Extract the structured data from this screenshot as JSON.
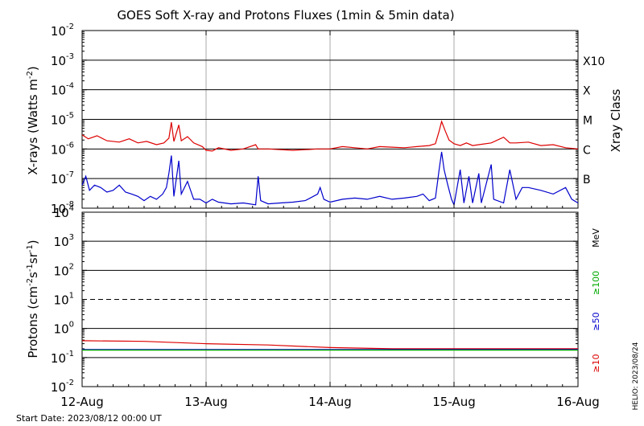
{
  "chart_data": [
    {
      "type": "line",
      "panel": "xray",
      "title": "GOES Soft X-ray and Protons Fluxes   (1min & 5min data)",
      "ylabel": "X-rays (Watts m",
      "ylabel_sup": "-2",
      "ylabel_end": ")",
      "yscale": "log",
      "ylim": [
        1e-08,
        0.01
      ],
      "y_ticks": [
        {
          "value": 1e-08,
          "base": "10",
          "exp": "-8"
        },
        {
          "value": 1e-07,
          "base": "10",
          "exp": "-7"
        },
        {
          "value": 1e-06,
          "base": "10",
          "exp": "-6"
        },
        {
          "value": 1e-05,
          "base": "10",
          "exp": "-5"
        },
        {
          "value": 0.0001,
          "base": "10",
          "exp": "-4"
        },
        {
          "value": 0.001,
          "base": "10",
          "exp": "-3"
        },
        {
          "value": 0.01,
          "base": "10",
          "exp": "-2"
        }
      ],
      "right_axis_title": "Xray Class",
      "class_labels": [
        {
          "label": "B",
          "value": 1e-07
        },
        {
          "label": "C",
          "value": 1e-06
        },
        {
          "label": "M",
          "value": 1e-05
        },
        {
          "label": "X",
          "value": 0.0001
        },
        {
          "label": "X10",
          "value": 0.001
        }
      ],
      "hlines": [
        1e-07,
        1e-06,
        1e-05,
        0.0001,
        0.001
      ],
      "series": [
        {
          "color": "#dd0000",
          "points": [
            [
              0,
              3e-06
            ],
            [
              0.05,
              2.2e-06
            ],
            [
              0.12,
              2.8e-06
            ],
            [
              0.2,
              1.9e-06
            ],
            [
              0.3,
              1.7e-06
            ],
            [
              0.38,
              2.2e-06
            ],
            [
              0.45,
              1.6e-06
            ],
            [
              0.52,
              1.8e-06
            ],
            [
              0.6,
              1.4e-06
            ],
            [
              0.66,
              1.6e-06
            ],
            [
              0.7,
              2.3e-06
            ],
            [
              0.72,
              8e-06
            ],
            [
              0.74,
              1.8e-06
            ],
            [
              0.78,
              6.5e-06
            ],
            [
              0.8,
              1.9e-06
            ],
            [
              0.85,
              2.6e-06
            ],
            [
              0.9,
              1.6e-06
            ],
            [
              0.97,
              1.2e-06
            ],
            [
              1.0,
              9e-07
            ],
            [
              1.05,
              8.5e-07
            ],
            [
              1.1,
              1.1e-06
            ],
            [
              1.2,
              9e-07
            ],
            [
              1.3,
              1e-06
            ],
            [
              1.4,
              1.4e-06
            ],
            [
              1.42,
              1e-06
            ],
            [
              1.5,
              1e-06
            ],
            [
              1.6,
              9.5e-07
            ],
            [
              1.7,
              9e-07
            ],
            [
              1.8,
              9.5e-07
            ],
            [
              1.9,
              1e-06
            ],
            [
              2.0,
              1e-06
            ],
            [
              2.1,
              1.2e-06
            ],
            [
              2.2,
              1.1e-06
            ],
            [
              2.3,
              1e-06
            ],
            [
              2.4,
              1.2e-06
            ],
            [
              2.5,
              1.15e-06
            ],
            [
              2.6,
              1.1e-06
            ],
            [
              2.7,
              1.2e-06
            ],
            [
              2.8,
              1.3e-06
            ],
            [
              2.85,
              1.5e-06
            ],
            [
              2.88,
              4e-06
            ],
            [
              2.9,
              8.5e-06
            ],
            [
              2.93,
              4e-06
            ],
            [
              2.96,
              2e-06
            ],
            [
              3.0,
              1.5e-06
            ],
            [
              3.05,
              1.3e-06
            ],
            [
              3.1,
              1.6e-06
            ],
            [
              3.15,
              1.3e-06
            ],
            [
              3.2,
              1.4e-06
            ],
            [
              3.3,
              1.6e-06
            ],
            [
              3.4,
              2.5e-06
            ],
            [
              3.45,
              1.6e-06
            ],
            [
              3.5,
              1.6e-06
            ],
            [
              3.6,
              1.7e-06
            ],
            [
              3.7,
              1.3e-06
            ],
            [
              3.8,
              1.4e-06
            ],
            [
              3.9,
              1.1e-06
            ],
            [
              4.0,
              1e-06
            ]
          ]
        },
        {
          "color": "#0000cc",
          "points": [
            [
              0,
              6e-08
            ],
            [
              0.03,
              1.2e-07
            ],
            [
              0.06,
              4e-08
            ],
            [
              0.1,
              6e-08
            ],
            [
              0.15,
              5e-08
            ],
            [
              0.2,
              3.5e-08
            ],
            [
              0.25,
              4e-08
            ],
            [
              0.3,
              6e-08
            ],
            [
              0.35,
              3.5e-08
            ],
            [
              0.4,
              3e-08
            ],
            [
              0.45,
              2.5e-08
            ],
            [
              0.5,
              1.8e-08
            ],
            [
              0.55,
              2.5e-08
            ],
            [
              0.6,
              2e-08
            ],
            [
              0.65,
              3e-08
            ],
            [
              0.68,
              5e-08
            ],
            [
              0.7,
              1.5e-07
            ],
            [
              0.72,
              6e-07
            ],
            [
              0.74,
              2.5e-08
            ],
            [
              0.78,
              4e-07
            ],
            [
              0.8,
              3e-08
            ],
            [
              0.85,
              8e-08
            ],
            [
              0.9,
              2e-08
            ],
            [
              0.95,
              2e-08
            ],
            [
              1.0,
              1.5e-08
            ],
            [
              1.05,
              2e-08
            ],
            [
              1.1,
              1.6e-08
            ],
            [
              1.2,
              1.4e-08
            ],
            [
              1.3,
              1.5e-08
            ],
            [
              1.4,
              1.3e-08
            ],
            [
              1.42,
              1.2e-07
            ],
            [
              1.44,
              1.8e-08
            ],
            [
              1.5,
              1.4e-08
            ],
            [
              1.6,
              1.5e-08
            ],
            [
              1.7,
              1.6e-08
            ],
            [
              1.8,
              1.8e-08
            ],
            [
              1.9,
              3e-08
            ],
            [
              1.92,
              5e-08
            ],
            [
              1.95,
              2e-08
            ],
            [
              2.0,
              1.6e-08
            ],
            [
              2.1,
              2e-08
            ],
            [
              2.2,
              2.2e-08
            ],
            [
              2.3,
              2e-08
            ],
            [
              2.4,
              2.5e-08
            ],
            [
              2.5,
              2e-08
            ],
            [
              2.6,
              2.2e-08
            ],
            [
              2.7,
              2.5e-08
            ],
            [
              2.75,
              3e-08
            ],
            [
              2.8,
              1.8e-08
            ],
            [
              2.85,
              2.2e-08
            ],
            [
              2.88,
              2e-07
            ],
            [
              2.9,
              8e-07
            ],
            [
              2.92,
              2e-07
            ],
            [
              2.95,
              6e-08
            ],
            [
              2.98,
              2e-08
            ],
            [
              3.0,
              1.3e-08
            ],
            [
              3.05,
              2e-07
            ],
            [
              3.08,
              1.5e-08
            ],
            [
              3.12,
              1.2e-07
            ],
            [
              3.15,
              1.5e-08
            ],
            [
              3.2,
              1.5e-07
            ],
            [
              3.22,
              1.5e-08
            ],
            [
              3.3,
              3e-07
            ],
            [
              3.32,
              2e-08
            ],
            [
              3.4,
              1.5e-08
            ],
            [
              3.45,
              2e-07
            ],
            [
              3.5,
              2e-08
            ],
            [
              3.55,
              5e-08
            ],
            [
              3.6,
              5e-08
            ],
            [
              3.7,
              4e-08
            ],
            [
              3.8,
              3e-08
            ],
            [
              3.9,
              5e-08
            ],
            [
              3.95,
              2e-08
            ],
            [
              4.0,
              1.5e-08
            ]
          ]
        }
      ]
    },
    {
      "type": "line",
      "panel": "protons",
      "ylabel": "Protons (cm",
      "ylabel_parts": [
        "-2",
        "s",
        "-1",
        "sr",
        "-1"
      ],
      "yscale": "log",
      "ylim": [
        0.01,
        10000
      ],
      "y_ticks": [
        {
          "value": 0.01,
          "base": "10",
          "exp": "-2"
        },
        {
          "value": 0.1,
          "base": "10",
          "exp": "-1"
        },
        {
          "value": 1,
          "base": "10",
          "exp": "0"
        },
        {
          "value": 10,
          "base": "10",
          "exp": "1"
        },
        {
          "value": 100,
          "base": "10",
          "exp": "2"
        },
        {
          "value": 1000,
          "base": "10",
          "exp": "3"
        },
        {
          "value": 10000,
          "base": "10",
          "exp": "4"
        }
      ],
      "hlines_solid": [
        0.1,
        1,
        100,
        1000
      ],
      "hline_dashed": 10,
      "right_labels": [
        {
          "text": "MeV",
          "color": "#000000"
        },
        {
          "text": "≥100",
          "color": "#00aa00"
        },
        {
          "text": "≥50",
          "color": "#0000cc"
        },
        {
          "text": "≥10",
          "color": "#dd0000"
        }
      ],
      "series": [
        {
          "name": "≥10",
          "color": "#dd0000",
          "points": [
            [
              0,
              0.38
            ],
            [
              0.5,
              0.36
            ],
            [
              1.0,
              0.3
            ],
            [
              1.5,
              0.27
            ],
            [
              2.0,
              0.22
            ],
            [
              2.5,
              0.2
            ],
            [
              3.0,
              0.2
            ],
            [
              3.5,
              0.2
            ],
            [
              4.0,
              0.2
            ]
          ]
        },
        {
          "name": "≥50",
          "color": "#0000cc",
          "points": [
            [
              0,
              0.19
            ],
            [
              4.0,
              0.19
            ]
          ]
        },
        {
          "name": "≥100",
          "color": "#00aa00",
          "points": [
            [
              0,
              0.18
            ],
            [
              4.0,
              0.18
            ]
          ]
        }
      ],
      "x_ticks": [
        "12-Aug",
        "13-Aug",
        "14-Aug",
        "15-Aug",
        "16-Aug"
      ]
    }
  ],
  "footer": {
    "start_date": "Start Date: 2023/08/12 00:00 UT",
    "side_stamp": "HELIO: 2023/08/24"
  }
}
